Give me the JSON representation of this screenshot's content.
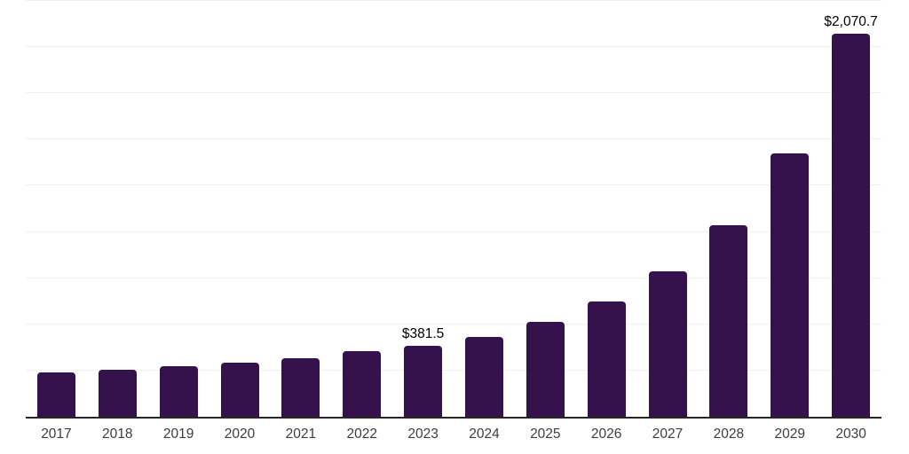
{
  "chart_data": {
    "type": "bar",
    "title": "",
    "xlabel": "",
    "ylabel": "",
    "categories": [
      "2017",
      "2018",
      "2019",
      "2020",
      "2021",
      "2022",
      "2023",
      "2024",
      "2025",
      "2026",
      "2027",
      "2028",
      "2029",
      "2030"
    ],
    "values": [
      240,
      255,
      274,
      293,
      318,
      357,
      381.5,
      433,
      512,
      625,
      789,
      1036,
      1423,
      2070.7
    ],
    "data_labels": [
      "",
      "",
      "",
      "",
      "",
      "",
      "$381.5",
      "",
      "",
      "",
      "",
      "",
      "",
      "$2,070.7"
    ],
    "ylim": [
      0,
      2250
    ],
    "grid_interval": 250,
    "grid": true,
    "legend": false,
    "bar_color": "#35124b",
    "axis_line_color": "#262626",
    "gridline_color": "#f1f1f3",
    "value_label_color": "#000000",
    "tick_label_color": "#3d3d3d"
  }
}
